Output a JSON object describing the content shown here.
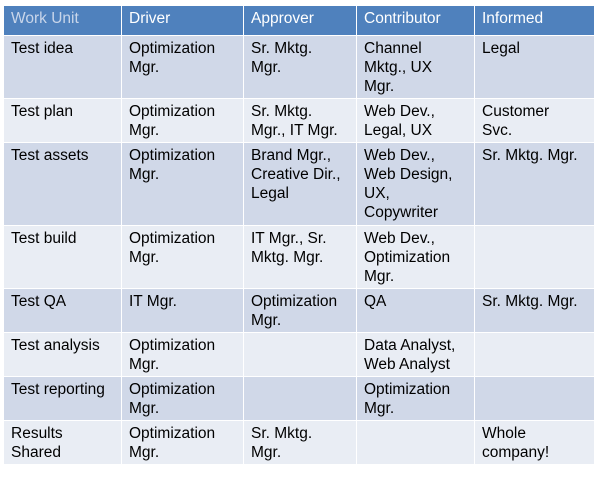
{
  "table": {
    "headers": [
      "Work Unit",
      "Driver",
      "Approver",
      "Contributor",
      "Informed"
    ],
    "rows": [
      [
        "Test idea",
        "Optimization\nMgr.",
        "Sr. Mktg.\nMgr.",
        "Channel\nMktg., UX\nMgr.",
        "Legal"
      ],
      [
        "Test plan",
        "Optimization\nMgr.",
        "Sr. Mktg.\nMgr., IT Mgr.",
        "Web Dev.,\nLegal, UX",
        "Customer\nSvc."
      ],
      [
        "Test assets",
        "Optimization\nMgr.",
        "Brand Mgr.,\nCreative Dir.,\nLegal",
        "Web Dev.,\nWeb Design,\nUX,\nCopywriter",
        "Sr. Mktg. Mgr."
      ],
      [
        "Test build",
        "Optimization\nMgr.",
        "IT Mgr., Sr.\nMktg. Mgr.",
        "Web Dev.,\nOptimization\nMgr.",
        ""
      ],
      [
        "Test QA",
        "IT Mgr.",
        "Optimization\nMgr.",
        "QA",
        "Sr. Mktg. Mgr."
      ],
      [
        "Test analysis",
        "Optimization\nMgr.",
        "",
        "Data Analyst,\nWeb Analyst",
        ""
      ],
      [
        "Test reporting",
        "Optimization\nMgr.",
        "",
        "Optimization\nMgr.",
        ""
      ],
      [
        "Results\nShared",
        "Optimization\nMgr.",
        "Sr. Mktg.\nMgr.",
        "",
        "Whole\ncompany!"
      ]
    ]
  }
}
